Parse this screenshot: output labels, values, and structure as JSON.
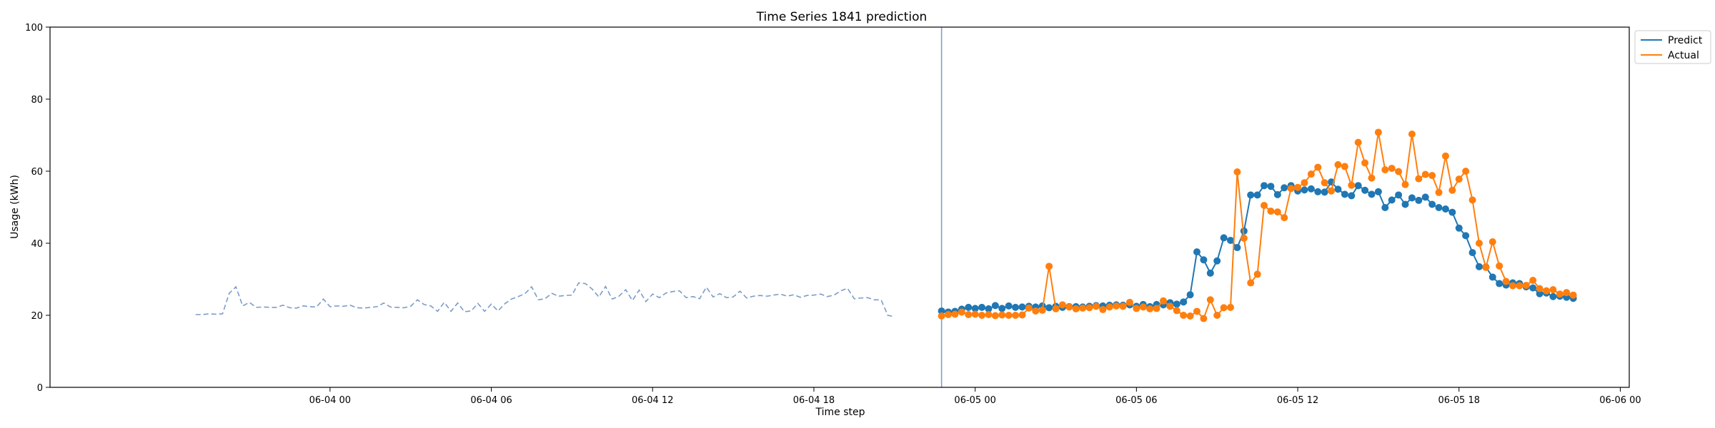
{
  "chart_data": {
    "type": "line",
    "title": "Time Series 1841 prediction",
    "xlabel": "Time step",
    "ylabel": "Usage (kWh)",
    "ylim": [
      0,
      100
    ],
    "yticks": [
      0,
      20,
      40,
      60,
      80,
      100
    ],
    "xlim": [
      "2024-06-03 13:35",
      "2024-06-06 00:20"
    ],
    "xtick_labels": [
      "06-04 00",
      "06-04 06",
      "06-04 12",
      "06-04 18",
      "06-05 00",
      "06-05 06",
      "06-05 12",
      "06-05 18",
      "06-06 00"
    ],
    "xtick_times": [
      "2024-06-04 00:00",
      "2024-06-04 06:00",
      "2024-06-04 12:00",
      "2024-06-04 18:00",
      "2024-06-05 00:00",
      "2024-06-05 06:00",
      "2024-06-05 12:00",
      "2024-06-05 18:00",
      "2024-06-06 00:00"
    ],
    "forecast_start": "2024-06-04 22:45",
    "legend_position": "top-right",
    "colors": {
      "predict": "#1f77b4",
      "actual": "#ff7f0e",
      "history": "#7b9cc9",
      "divider": "#7b9cc9",
      "axis": "#000000"
    },
    "history": {
      "start": "2024-06-03 19:00",
      "step_minutes": 15,
      "style": "dashed",
      "values": [
        20.2,
        20.2,
        20.4,
        20.3,
        20.4,
        26.1,
        27.9,
        22.6,
        23.6,
        22.2,
        22.3,
        22.2,
        22.2,
        22.8,
        22.1,
        22.0,
        22.6,
        22.4,
        22.3,
        24.5,
        22.4,
        22.6,
        22.5,
        22.8,
        22.1,
        22.0,
        22.2,
        22.4,
        23.4,
        22.3,
        22.2,
        22.1,
        22.5,
        24.3,
        23.0,
        22.6,
        21.1,
        23.6,
        21.1,
        23.4,
        21.0,
        21.2,
        23.3,
        21.1,
        23.1,
        21.2,
        23.2,
        24.5,
        25.2,
        26.0,
        27.9,
        24.3,
        24.6,
        26.1,
        25.3,
        25.5,
        25.6,
        29.0,
        28.8,
        27.3,
        25.1,
        28.0,
        24.5,
        25.3,
        27.1,
        24.1,
        27.0,
        23.8,
        25.9,
        24.9,
        26.2,
        26.6,
        26.8,
        24.9,
        25.2,
        24.6,
        27.8,
        25.1,
        26.0,
        24.9,
        25.1,
        26.7,
        24.8,
        25.3,
        25.5,
        25.3,
        25.6,
        25.9,
        25.3,
        25.7,
        25.0,
        25.5,
        25.6,
        25.9,
        25.2,
        25.6,
        26.8,
        27.5,
        24.6,
        24.8,
        24.9,
        24.3,
        24.3,
        20.0,
        19.6
      ]
    },
    "series": [
      {
        "name": "Predict",
        "start": "2024-06-04 22:45",
        "step_minutes": 15,
        "values": [
          21.2,
          20.9,
          21.1,
          21.7,
          22.2,
          21.9,
          22.2,
          21.8,
          22.7,
          21.9,
          22.6,
          22.2,
          22.3,
          22.5,
          22.3,
          22.6,
          22.1,
          22.5,
          22.2,
          22.4,
          22.4,
          22.3,
          22.5,
          22.7,
          22.6,
          22.8,
          22.9,
          22.8,
          22.9,
          22.5,
          23.0,
          22.4,
          23.0,
          22.9,
          23.5,
          23.1,
          23.7,
          25.7,
          37.6,
          35.4,
          31.7,
          35.1,
          41.5,
          40.8,
          38.8,
          43.4,
          53.4,
          53.4,
          56.0,
          55.8,
          53.5,
          55.4,
          56.0,
          54.5,
          54.8,
          55.1,
          54.3,
          54.2,
          57.0,
          55.0,
          53.6,
          53.2,
          56.0,
          54.7,
          53.6,
          54.3,
          49.9,
          52.0,
          53.4,
          50.8,
          52.6,
          51.9,
          52.8,
          50.8,
          49.9,
          49.5,
          48.6,
          44.2,
          42.1,
          37.4,
          33.5,
          33.4,
          30.6,
          28.8,
          28.4,
          29.0,
          28.8,
          27.9,
          27.6,
          26.0,
          26.2,
          25.2,
          25.3,
          25.0,
          24.7
        ]
      },
      {
        "name": "Actual",
        "start": "2024-06-04 22:45",
        "step_minutes": 15,
        "values": [
          19.8,
          20.2,
          20.3,
          20.9,
          20.2,
          20.3,
          20.0,
          20.2,
          19.9,
          20.1,
          20.0,
          20.0,
          20.1,
          22.0,
          21.2,
          21.4,
          33.6,
          21.8,
          22.9,
          22.3,
          21.8,
          22.0,
          22.1,
          22.5,
          21.6,
          22.3,
          22.6,
          22.5,
          23.6,
          21.9,
          22.3,
          21.8,
          21.9,
          24.0,
          22.5,
          21.3,
          20.0,
          19.8,
          21.1,
          19.1,
          24.3,
          20.0,
          22.1,
          22.2,
          59.8,
          41.4,
          29.0,
          31.4,
          50.5,
          48.9,
          48.7,
          47.1,
          55.2,
          55.5,
          56.8,
          59.2,
          61.1,
          56.8,
          54.5,
          61.8,
          61.3,
          56.1,
          68.0,
          62.3,
          58.1,
          70.8,
          60.4,
          60.8,
          59.9,
          56.3,
          70.3,
          57.9,
          59.1,
          58.8,
          54.1,
          64.2,
          54.7,
          57.8,
          60.0,
          52.0,
          40.0,
          33.3,
          40.4,
          33.7,
          29.4,
          28.2,
          28.2,
          28.3,
          29.7,
          27.4,
          26.8,
          27.1,
          25.9,
          26.3,
          25.6
        ]
      }
    ]
  }
}
